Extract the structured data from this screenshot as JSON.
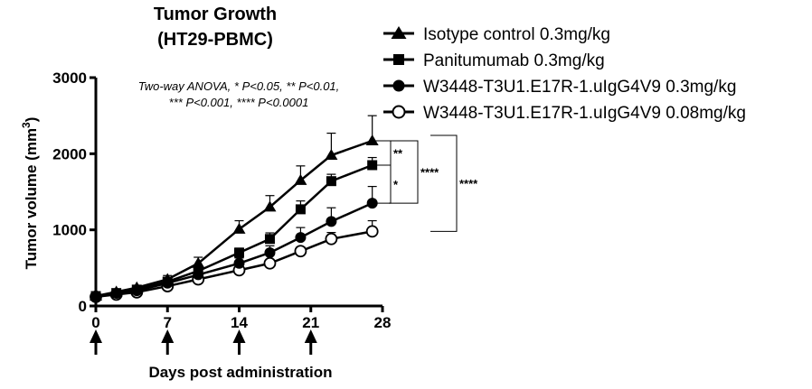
{
  "chart_data": {
    "type": "line",
    "title": "Tumor Growth",
    "subtitle": "(HT29-PBMC)",
    "xlabel": "Days post administration",
    "ylabel_main": "Tumor volume (mm",
    "ylabel_sup": "3",
    "ylabel_close": ")",
    "annotation_line1": "Two-way ANOVA, * P<0.05, ** P<0.01,",
    "annotation_line2": "*** P<0.001, **** P<0.0001",
    "xlim": [
      0,
      28
    ],
    "ylim": [
      0,
      3000
    ],
    "xticks": [
      0,
      7,
      14,
      21,
      28
    ],
    "xtick_labels": [
      "0",
      "7",
      "14",
      "21",
      "28"
    ],
    "yticks": [
      0,
      1000,
      2000,
      3000
    ],
    "ytick_labels": [
      "0",
      "1000",
      "2000",
      "3000"
    ],
    "dosing_days": [
      0,
      7,
      14,
      21
    ],
    "x": [
      0,
      2,
      4,
      7,
      10,
      14,
      17,
      20,
      23,
      27
    ],
    "series": [
      {
        "name": "Isotype control 0.3mg/kg",
        "marker": "triangle",
        "values": [
          130,
          185,
          240,
          350,
          560,
          1010,
          1300,
          1650,
          1980,
          2170
        ],
        "errors": [
          20,
          25,
          30,
          50,
          80,
          110,
          150,
          190,
          290,
          330
        ]
      },
      {
        "name": "Panitumumab  0.3mg/kg",
        "marker": "square",
        "values": [
          130,
          170,
          215,
          320,
          460,
          700,
          880,
          1270,
          1640,
          1850
        ],
        "errors": [
          20,
          22,
          28,
          40,
          60,
          60,
          80,
          110,
          90,
          100
        ]
      },
      {
        "name": "W3448-T3U1.E17R-1.uIgG4V9 0.3mg/kg",
        "marker": "filled-circle",
        "values": [
          130,
          165,
          200,
          300,
          410,
          560,
          700,
          900,
          1110,
          1350
        ],
        "errors": [
          20,
          20,
          25,
          40,
          55,
          70,
          90,
          130,
          180,
          220
        ]
      },
      {
        "name": "W3448-T3U1.E17R-1.uIgG4V9 0.08mg/kg",
        "marker": "open-circle",
        "values": [
          120,
          150,
          180,
          260,
          350,
          470,
          560,
          720,
          880,
          980
        ],
        "errors": [
          15,
          18,
          22,
          30,
          40,
          45,
          50,
          55,
          85,
          140
        ]
      }
    ],
    "comparisons": [
      {
        "label": "**",
        "from_series": 0,
        "to_series": 1
      },
      {
        "label": "*",
        "from_series": 1,
        "to_series": 2
      },
      {
        "label": "****",
        "from_series": 0,
        "to_series": 2
      },
      {
        "label": "****",
        "from_series": 0,
        "to_series": 3
      }
    ]
  }
}
